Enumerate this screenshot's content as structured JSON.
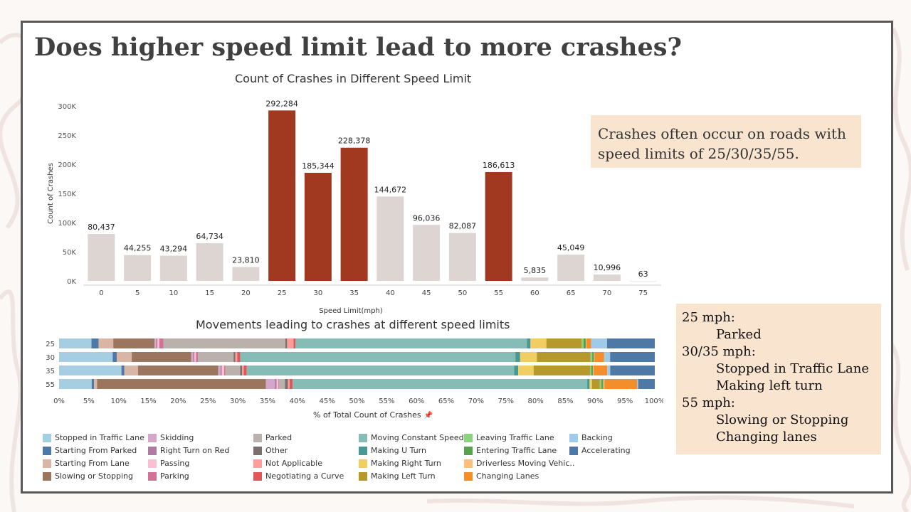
{
  "slide": {
    "title": "Does higher speed limit lead to more crashes?",
    "note1": "Crashes often occur on roads with speed limits of 25/30/35/55.",
    "note2": [
      {
        "text": "25 mph:",
        "indent": false
      },
      {
        "text": "Parked",
        "indent": true
      },
      {
        "text": "30/35 mph:",
        "indent": false
      },
      {
        "text": "Stopped in Traffic Lane",
        "indent": true
      },
      {
        "text": "Making left turn",
        "indent": true
      },
      {
        "text": "55 mph:",
        "indent": false
      },
      {
        "text": "Slowing or Stopping",
        "indent": true
      },
      {
        "text": "Changing lanes",
        "indent": true
      }
    ]
  },
  "chart_data": [
    {
      "type": "bar",
      "title": "Count of Crashes in Different Speed Limit",
      "xlabel": "Speed Limit(mph)",
      "ylabel": "Count of Crashes",
      "categories": [
        "0",
        "5",
        "10",
        "15",
        "20",
        "25",
        "30",
        "35",
        "40",
        "45",
        "50",
        "55",
        "60",
        "65",
        "70",
        "75"
      ],
      "values": [
        80437,
        44255,
        43294,
        64734,
        23810,
        292284,
        185344,
        228378,
        144672,
        96036,
        82087,
        186613,
        5835,
        45049,
        10996,
        63
      ],
      "value_labels": [
        "80,437",
        "44,255",
        "43,294",
        "64,734",
        "23,810",
        "292,284",
        "185,344",
        "228,378",
        "144,672",
        "96,036",
        "82,087",
        "186,613",
        "5,835",
        "45,049",
        "10,996",
        "63"
      ],
      "highlighted": [
        "25",
        "30",
        "35",
        "55"
      ],
      "highlight_color": "#a0391f",
      "base_color": "#dcd5d2",
      "yticks": [
        "0K",
        "50K",
        "100K",
        "150K",
        "200K",
        "250K",
        "300K"
      ],
      "ylim": [
        0,
        300000
      ]
    },
    {
      "type": "bar",
      "orientation": "horizontal-stacked-100",
      "title": "Movements leading to crashes at different speed limits",
      "xlabel": "% of Total Count of Crashes",
      "xticks": [
        "0%",
        "5%",
        "10%",
        "15%",
        "20%",
        "25%",
        "30%",
        "35%",
        "40%",
        "45%",
        "50%",
        "55%",
        "60%",
        "65%",
        "70%",
        "75%",
        "80%",
        "85%",
        "90%",
        "95%",
        "100%"
      ],
      "categories": [
        "25",
        "30",
        "35",
        "55"
      ],
      "series": [
        {
          "name": "Stopped in Traffic Lane",
          "color": "#a6cee3",
          "values": [
            5.5,
            9.0,
            10.5,
            5.5
          ]
        },
        {
          "name": "Starting From Parked",
          "color": "#4e79a7",
          "values": [
            1.2,
            0.7,
            0.5,
            0.4
          ]
        },
        {
          "name": "Starting From Lane",
          "color": "#d8b5a5",
          "values": [
            2.5,
            2.5,
            2.3,
            0.5
          ]
        },
        {
          "name": "Slowing or Stopping",
          "color": "#9c755f",
          "values": [
            7.0,
            10.0,
            13.5,
            28.5
          ]
        },
        {
          "name": "Skidding",
          "color": "#d4a6c8",
          "values": [
            0.3,
            0.3,
            0.4,
            1.5
          ]
        },
        {
          "name": "Right Turn on Red",
          "color": "#b07aa1",
          "values": [
            0.2,
            0.2,
            0.2,
            0.3
          ]
        },
        {
          "name": "Passing",
          "color": "#fabfd2",
          "values": [
            0.3,
            0.3,
            0.4,
            0.3
          ]
        },
        {
          "name": "Parking",
          "color": "#d37295",
          "values": [
            0.7,
            0.3,
            0.2,
            0.1
          ]
        },
        {
          "name": "Parked",
          "color": "#bab0ac",
          "values": [
            20.7,
            6.0,
            2.5,
            1.0
          ]
        },
        {
          "name": "Other",
          "color": "#79706e",
          "values": [
            0.3,
            0.3,
            0.3,
            0.5
          ]
        },
        {
          "name": "Not Applicable",
          "color": "#ff9d9a",
          "values": [
            1.1,
            0.3,
            0.3,
            0.3
          ]
        },
        {
          "name": "Negotiating a Curve",
          "color": "#e15759",
          "values": [
            0.3,
            0.5,
            0.5,
            0.5
          ]
        },
        {
          "name": "Moving Constant Speed",
          "color": "#86bcb6",
          "values": [
            39.3,
            46.2,
            45.0,
            49.7
          ]
        },
        {
          "name": "Making U Turn",
          "color": "#499894",
          "values": [
            0.6,
            0.8,
            0.7,
            0.4
          ]
        },
        {
          "name": "Making Right Turn",
          "color": "#f1ce63",
          "values": [
            2.7,
            2.8,
            2.6,
            0.4
          ]
        },
        {
          "name": "Making Left Turn",
          "color": "#b6992d",
          "values": [
            6.0,
            9.0,
            9.5,
            1.3
          ]
        },
        {
          "name": "Leaving Traffic Lane",
          "color": "#8cd17d",
          "values": [
            0.3,
            0.3,
            0.2,
            0.3
          ]
        },
        {
          "name": "Entering Traffic Lane",
          "color": "#59a14f",
          "values": [
            0.4,
            0.3,
            0.3,
            0.3
          ]
        },
        {
          "name": "Driverless Moving Vehic..",
          "color": "#ffbe7d",
          "values": [
            0.1,
            0.1,
            0.1,
            0.2
          ]
        },
        {
          "name": "Changing Lanes",
          "color": "#f28e2b",
          "values": [
            0.8,
            1.6,
            2.3,
            5.5
          ]
        },
        {
          "name": "Backing",
          "color": "#a0cbe8",
          "values": [
            2.7,
            1.0,
            0.5,
            0.2
          ]
        },
        {
          "name": "Accelerating",
          "color": "#4e79a7",
          "values": [
            8.1,
            7.5,
            7.5,
            2.8
          ]
        }
      ]
    }
  ]
}
